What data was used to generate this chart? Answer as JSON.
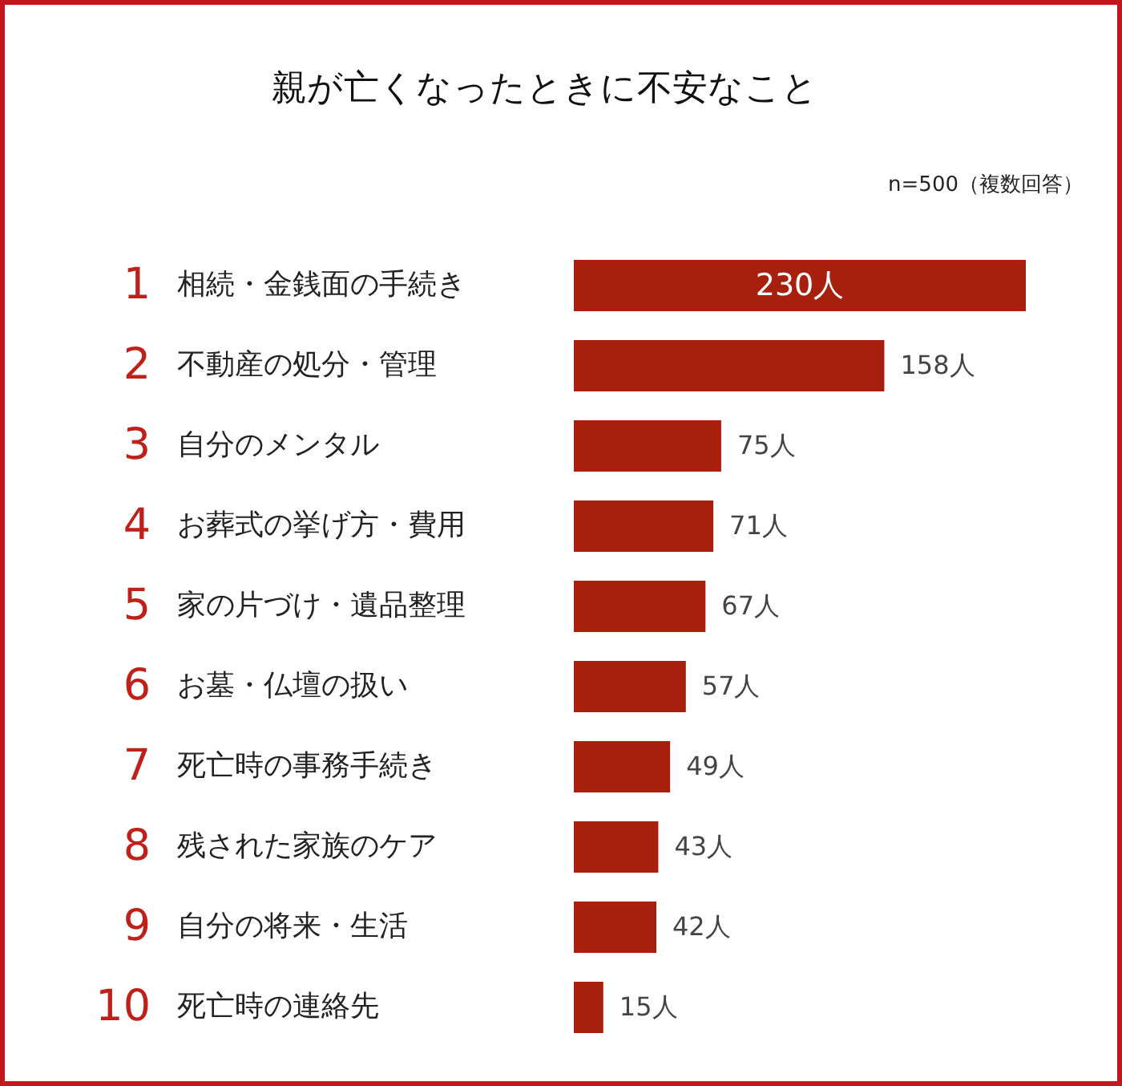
{
  "chart_data": {
    "type": "bar",
    "orientation": "horizontal",
    "title": "親が亡くなったときに不安なこと",
    "categories": [
      "相続・金銭面の手続き",
      "不動産の処分・管理",
      "自分のメンタル",
      "お葬式の挙げ方・費用",
      "家の片づけ・遺品整理",
      "お墓・仏壇の扱い",
      "死亡時の事務手続き",
      "残された家族のケア",
      "自分の将来・生活",
      "死亡時の連絡先"
    ],
    "values": [
      230,
      158,
      75,
      71,
      67,
      57,
      49,
      43,
      42,
      15
    ],
    "value_labels": [
      "230人",
      "158人",
      "75人",
      "71人",
      "67人",
      "57人",
      "49人",
      "43人",
      "42人",
      "15人"
    ],
    "color": "#a8200d",
    "annotations": [
      "n=500（複数回答）",
      "1",
      "2",
      "3",
      "4",
      "5",
      "6",
      "7",
      "8",
      "9",
      "10"
    ]
  }
}
